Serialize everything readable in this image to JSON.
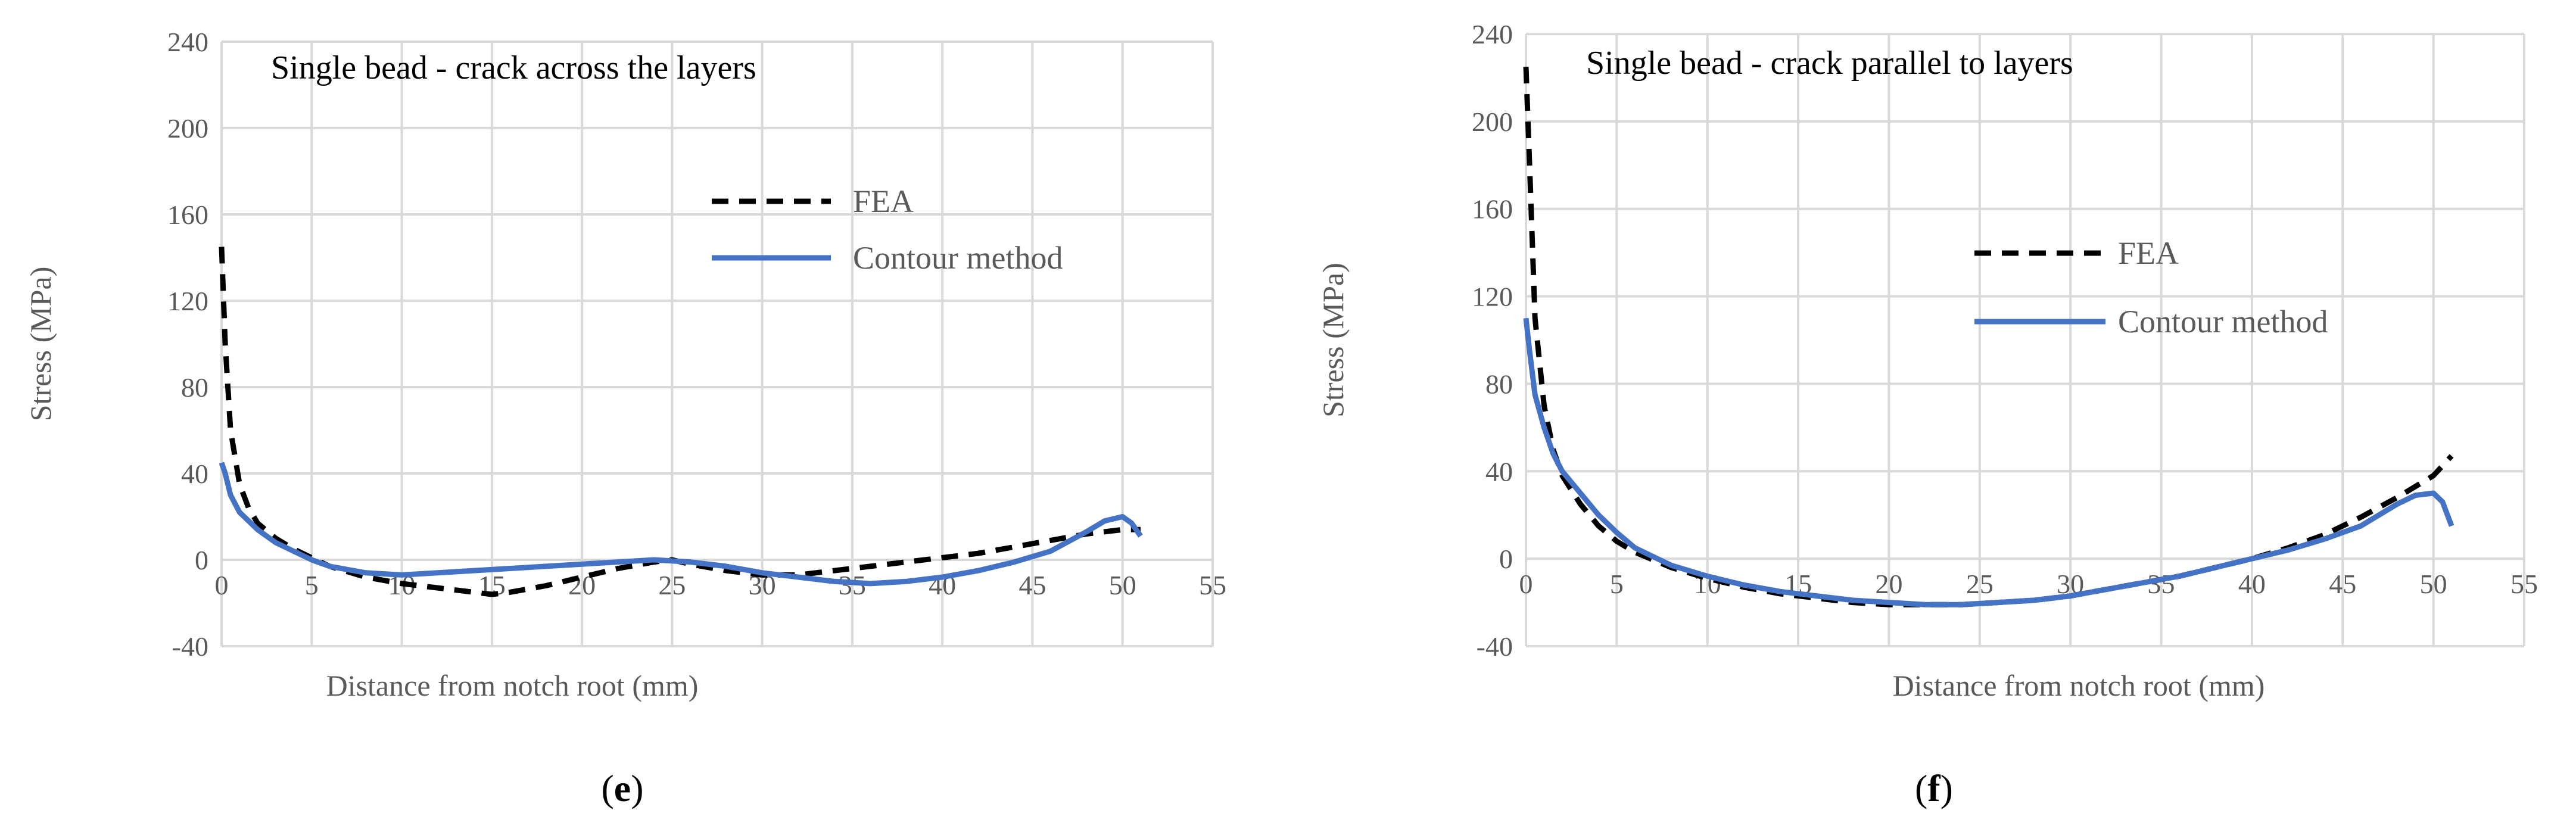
{
  "chart_data": [
    {
      "type": "line",
      "title": "Single bead - crack across the layers",
      "xlabel": "Distance from notch root (mm)",
      "ylabel": "Stress (MPa)",
      "xlim": [
        0,
        55
      ],
      "ylim": [
        -40,
        240
      ],
      "x_ticks": [
        "0",
        "5",
        "10",
        "15",
        "20",
        "25",
        "30",
        "35",
        "40",
        "45",
        "50",
        "55"
      ],
      "y_ticks": [
        "240",
        "200",
        "160",
        "120",
        "80",
        "40",
        "0",
        "-40"
      ],
      "grid": true,
      "legend_position": "upper-right",
      "panel_label": "e",
      "series": [
        {
          "name": "FEA",
          "style": "dashed",
          "color": "#000000",
          "x": [
            0,
            0.2,
            0.5,
            1,
            1.5,
            2,
            3,
            4,
            5,
            6,
            8,
            10,
            12,
            14,
            15,
            16,
            18,
            20,
            22,
            24,
            25,
            26,
            28,
            30,
            32,
            34,
            36,
            38,
            40,
            42,
            44,
            46,
            48,
            50,
            51
          ],
          "y": [
            145,
            100,
            60,
            35,
            24,
            17,
            10,
            5,
            1,
            -3,
            -8,
            -11,
            -13,
            -15,
            -16,
            -15,
            -12,
            -8,
            -4,
            -1,
            0,
            -2,
            -5,
            -7,
            -7,
            -5,
            -3,
            -1,
            1,
            3,
            6,
            9,
            12,
            14,
            14
          ]
        },
        {
          "name": "Contour method",
          "style": "solid",
          "color": "#4472c4",
          "x": [
            0,
            0.2,
            0.5,
            1,
            2,
            3,
            4,
            5,
            6,
            8,
            10,
            12,
            14,
            16,
            18,
            20,
            22,
            24,
            26,
            28,
            30,
            32,
            34,
            36,
            38,
            40,
            42,
            44,
            46,
            48,
            49,
            50,
            50.5,
            51
          ],
          "y": [
            45,
            40,
            30,
            22,
            14,
            8,
            4,
            0,
            -3,
            -6,
            -7,
            -6,
            -5,
            -4,
            -3,
            -2,
            -1,
            0,
            -1,
            -3,
            -6,
            -8,
            -10,
            -11,
            -10,
            -8,
            -5,
            -1,
            4,
            13,
            18,
            20,
            17,
            11
          ]
        }
      ]
    },
    {
      "type": "line",
      "title": "Single bead - crack parallel to layers",
      "xlabel": "Distance from notch root (mm)",
      "ylabel": "Stress (MPa)",
      "xlim": [
        0,
        55
      ],
      "ylim": [
        -40,
        240
      ],
      "x_ticks": [
        "0",
        "5",
        "10",
        "15",
        "20",
        "25",
        "30",
        "35",
        "40",
        "45",
        "50",
        "55"
      ],
      "y_ticks": [
        "240",
        "200",
        "160",
        "120",
        "80",
        "40",
        "0",
        "-40"
      ],
      "grid": true,
      "legend_position": "middle-right",
      "panel_label": "f",
      "series": [
        {
          "name": "FEA",
          "style": "dashed",
          "color": "#000000",
          "x": [
            0,
            0.2,
            0.5,
            1,
            1.5,
            2,
            3,
            4,
            5,
            6,
            8,
            10,
            12,
            14,
            16,
            18,
            20,
            22,
            24,
            26,
            28,
            30,
            32,
            34,
            36,
            38,
            40,
            42,
            44,
            46,
            48,
            50,
            51
          ],
          "y": [
            225,
            180,
            110,
            70,
            50,
            38,
            25,
            15,
            8,
            3,
            -4,
            -9,
            -13,
            -16,
            -18,
            -20,
            -21,
            -21,
            -21,
            -20,
            -19,
            -17,
            -14,
            -11,
            -8,
            -4,
            0,
            5,
            11,
            19,
            28,
            38,
            47
          ]
        },
        {
          "name": "Contour method",
          "style": "solid",
          "color": "#4472c4",
          "x": [
            0,
            0.2,
            0.5,
            1,
            1.5,
            2,
            3,
            4,
            5,
            6,
            8,
            10,
            12,
            14,
            16,
            18,
            20,
            22,
            24,
            26,
            28,
            30,
            32,
            34,
            36,
            38,
            40,
            42,
            44,
            46,
            48,
            49,
            50,
            50.5,
            51
          ],
          "y": [
            110,
            95,
            75,
            60,
            48,
            40,
            30,
            20,
            12,
            5,
            -3,
            -8,
            -12,
            -15,
            -17,
            -19,
            -20,
            -21,
            -21,
            -20,
            -19,
            -17,
            -14,
            -11,
            -8,
            -4,
            0,
            4,
            9,
            15,
            25,
            29,
            30,
            26,
            15
          ]
        }
      ]
    }
  ]
}
